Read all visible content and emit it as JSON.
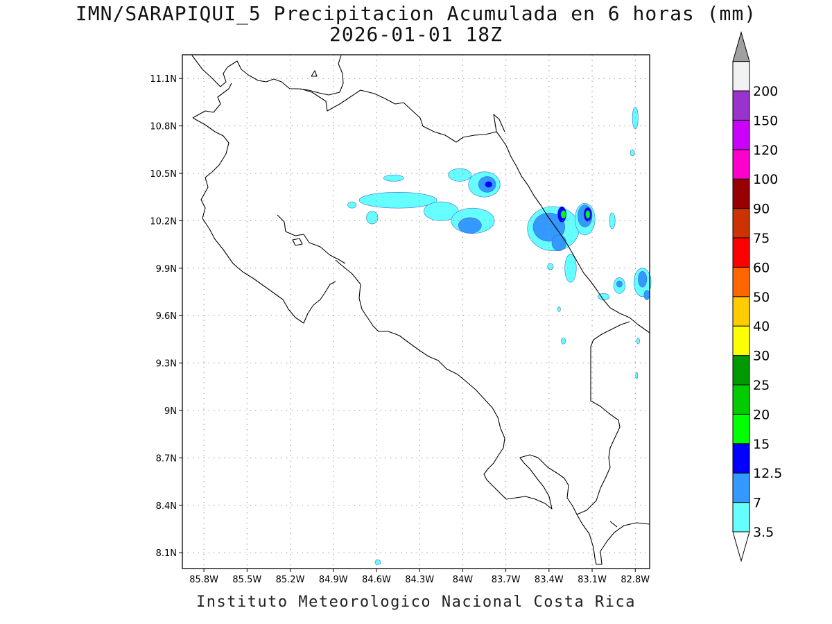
{
  "title": {
    "line1": "IMN/SARAPIQUI_5 Precipitacion Acumulada en 6 horas (mm)",
    "line2": "2026-01-01 18Z"
  },
  "credit": "Instituto Meteorologico Nacional Costa Rica",
  "map": {
    "lon_range": [
      -85.95,
      -82.7
    ],
    "lat_range": [
      8.0,
      11.25
    ],
    "lon_ticks": [
      {
        "value": -85.8,
        "label": "85.8W"
      },
      {
        "value": -85.5,
        "label": "85.5W"
      },
      {
        "value": -85.2,
        "label": "85.2W"
      },
      {
        "value": -84.9,
        "label": "84.9W"
      },
      {
        "value": -84.6,
        "label": "84.6W"
      },
      {
        "value": -84.3,
        "label": "84.3W"
      },
      {
        "value": -84.0,
        "label": "84W"
      },
      {
        "value": -83.7,
        "label": "83.7W"
      },
      {
        "value": -83.4,
        "label": "83.4W"
      },
      {
        "value": -83.1,
        "label": "83.1W"
      },
      {
        "value": -82.8,
        "label": "82.8W"
      }
    ],
    "lat_ticks": [
      {
        "value": 11.1,
        "label": "11.1N"
      },
      {
        "value": 10.8,
        "label": "10.8N"
      },
      {
        "value": 10.5,
        "label": "10.5N"
      },
      {
        "value": 10.2,
        "label": "10.2N"
      },
      {
        "value": 9.9,
        "label": "9.9N"
      },
      {
        "value": 9.6,
        "label": "9.6N"
      },
      {
        "value": 9.3,
        "label": "9.3N"
      },
      {
        "value": 9.0,
        "label": "9N"
      },
      {
        "value": 8.7,
        "label": "8.7N"
      },
      {
        "value": 8.4,
        "label": "8.4N"
      },
      {
        "value": 8.1,
        "label": "8.1N"
      }
    ],
    "grid": "dotted",
    "precip_areas": [
      {
        "level": "3.5",
        "lon": -84.45,
        "lat": 10.33,
        "rlon": 0.27,
        "rlat": 0.05
      },
      {
        "level": "3.5",
        "lon": -84.15,
        "lat": 10.26,
        "rlon": 0.12,
        "rlat": 0.06
      },
      {
        "level": "3.5",
        "lon": -84.48,
        "lat": 10.47,
        "rlon": 0.07,
        "rlat": 0.02
      },
      {
        "level": "3.5",
        "lon": -84.63,
        "lat": 10.22,
        "rlon": 0.04,
        "rlat": 0.04
      },
      {
        "level": "3.5",
        "lon": -84.77,
        "lat": 10.3,
        "rlon": 0.03,
        "rlat": 0.02
      },
      {
        "level": "3.5",
        "lon": -83.93,
        "lat": 10.2,
        "rlon": 0.15,
        "rlat": 0.08
      },
      {
        "level": "3.5",
        "lon": -83.85,
        "lat": 10.43,
        "rlon": 0.11,
        "rlat": 0.08
      },
      {
        "level": "3.5",
        "lon": -84.02,
        "lat": 10.49,
        "rlon": 0.08,
        "rlat": 0.04
      },
      {
        "level": "3.5",
        "lon": -83.37,
        "lat": 10.15,
        "rlon": 0.18,
        "rlat": 0.14
      },
      {
        "level": "3.5",
        "lon": -83.15,
        "lat": 10.21,
        "rlon": 0.07,
        "rlat": 0.1
      },
      {
        "level": "3.5",
        "lon": -82.96,
        "lat": 10.2,
        "rlon": 0.02,
        "rlat": 0.05
      },
      {
        "level": "3.5",
        "lon": -83.25,
        "lat": 9.9,
        "rlon": 0.04,
        "rlat": 0.09
      },
      {
        "level": "3.5",
        "lon": -83.39,
        "lat": 9.91,
        "rlon": 0.02,
        "rlat": 0.02
      },
      {
        "level": "3.5",
        "lon": -82.75,
        "lat": 9.81,
        "rlon": 0.06,
        "rlat": 0.09
      },
      {
        "level": "3.5",
        "lon": -82.91,
        "lat": 9.79,
        "rlon": 0.04,
        "rlat": 0.05
      },
      {
        "level": "3.5",
        "lon": -83.02,
        "lat": 9.72,
        "rlon": 0.04,
        "rlat": 0.02
      },
      {
        "level": "3.5",
        "lon": -82.8,
        "lat": 10.85,
        "rlon": 0.02,
        "rlat": 0.07
      },
      {
        "level": "3.5",
        "lon": -82.82,
        "lat": 10.63,
        "rlon": 0.015,
        "rlat": 0.02
      },
      {
        "level": "3.5",
        "lon": -83.33,
        "lat": 9.64,
        "rlon": 0.01,
        "rlat": 0.015
      },
      {
        "level": "3.5",
        "lon": -83.3,
        "lat": 9.44,
        "rlon": 0.015,
        "rlat": 0.02
      },
      {
        "level": "3.5",
        "lon": -82.78,
        "lat": 9.44,
        "rlon": 0.01,
        "rlat": 0.02
      },
      {
        "level": "3.5",
        "lon": -82.79,
        "lat": 9.22,
        "rlon": 0.008,
        "rlat": 0.02
      },
      {
        "level": "3.5",
        "lon": -84.59,
        "lat": 8.04,
        "rlon": 0.02,
        "rlat": 0.015
      },
      {
        "level": "7",
        "lon": -83.95,
        "lat": 10.17,
        "rlon": 0.08,
        "rlat": 0.05
      },
      {
        "level": "7",
        "lon": -83.83,
        "lat": 10.43,
        "rlon": 0.06,
        "rlat": 0.05
      },
      {
        "level": "7",
        "lon": -83.4,
        "lat": 10.16,
        "rlon": 0.11,
        "rlat": 0.09
      },
      {
        "level": "7",
        "lon": -83.33,
        "lat": 10.06,
        "rlon": 0.05,
        "rlat": 0.05
      },
      {
        "level": "7",
        "lon": -83.15,
        "lat": 10.23,
        "rlon": 0.05,
        "rlat": 0.07
      },
      {
        "level": "7",
        "lon": -82.75,
        "lat": 9.83,
        "rlon": 0.03,
        "rlat": 0.05
      },
      {
        "level": "7",
        "lon": -82.91,
        "lat": 9.8,
        "rlon": 0.02,
        "rlat": 0.02
      },
      {
        "level": "7",
        "lon": -82.72,
        "lat": 9.73,
        "rlon": 0.02,
        "rlat": 0.03
      },
      {
        "level": "12.5",
        "lon": -83.82,
        "lat": 10.43,
        "rlon": 0.025,
        "rlat": 0.02
      },
      {
        "level": "12.5",
        "lon": -83.31,
        "lat": 10.24,
        "rlon": 0.03,
        "rlat": 0.05
      },
      {
        "level": "12.5",
        "lon": -83.13,
        "lat": 10.24,
        "rlon": 0.028,
        "rlat": 0.045
      },
      {
        "level": "15",
        "lon": -83.3,
        "lat": 10.24,
        "rlon": 0.017,
        "rlat": 0.025
      },
      {
        "level": "15",
        "lon": -83.13,
        "lat": 10.24,
        "rlon": 0.015,
        "rlat": 0.025
      }
    ],
    "precip_colors": {
      "3.5": "#66ffff",
      "7": "#3399ff",
      "12.5": "#0000ff",
      "15": "#00ff00"
    },
    "coastline_color": "#000000"
  },
  "colorbar": {
    "under_color": "#ffffff",
    "over_color": "#a0a0a0",
    "levels": [
      {
        "label": "3.5",
        "color": "#66ffff"
      },
      {
        "label": "7",
        "color": "#3399ff"
      },
      {
        "label": "12.5",
        "color": "#0000ff"
      },
      {
        "label": "15",
        "color": "#00ff00"
      },
      {
        "label": "20",
        "color": "#00cc00"
      },
      {
        "label": "25",
        "color": "#009900"
      },
      {
        "label": "30",
        "color": "#ffff00"
      },
      {
        "label": "40",
        "color": "#ffcc00"
      },
      {
        "label": "50",
        "color": "#ff6600"
      },
      {
        "label": "60",
        "color": "#ff0000"
      },
      {
        "label": "75",
        "color": "#cc3300"
      },
      {
        "label": "90",
        "color": "#990000"
      },
      {
        "label": "100",
        "color": "#ff00cc"
      },
      {
        "label": "120",
        "color": "#cc00ff"
      },
      {
        "label": "150",
        "color": "#9933cc"
      },
      {
        "label": "200",
        "color": "#f2f2f2"
      }
    ]
  }
}
